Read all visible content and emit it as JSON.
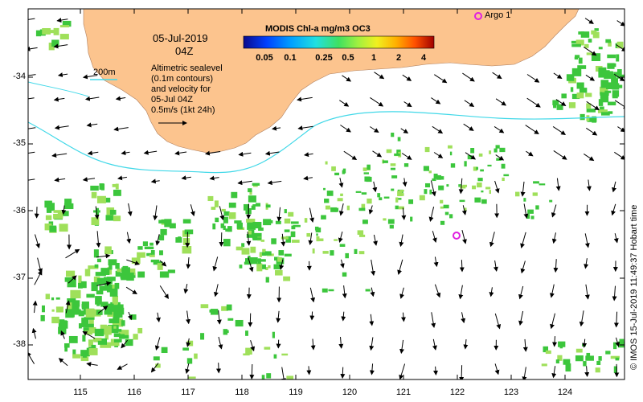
{
  "map": {
    "date_line1": "05-Jul-2019",
    "date_line2": "04Z",
    "isobath_label": "200m",
    "legend_lines": [
      "Altimetric sealevel",
      "(0.1m contours)",
      "and velocity for",
      "05-Jul 04Z",
      "0.5m/s (1kt 24h)"
    ],
    "colorbar_title": "MODIS Chl-a mg/m3 OC3",
    "colorbar_ticks": [
      "0.05",
      "0.1",
      "0.25",
      "0.5",
      "1",
      "2",
      "4"
    ],
    "argo_label": "Argo 1",
    "credit": "© IMOS 15-Jul-2019 11:49:37 Hobart time",
    "x_ticks": [
      "115",
      "116",
      "117",
      "118",
      "119",
      "120",
      "121",
      "122",
      "123",
      "124"
    ],
    "y_ticks": [
      "-34",
      "-35",
      "-36",
      "-37",
      "-38"
    ],
    "colors": {
      "land": "#fcc48e",
      "isobath": "#40d8e8",
      "argo": "#e020e0",
      "chl_green": "#3cc63c",
      "chl_light": "#9fe05a"
    },
    "icons": [
      "velocity-arrow-icon",
      "argo-float-icon",
      "scale-arrow-icon"
    ]
  }
}
